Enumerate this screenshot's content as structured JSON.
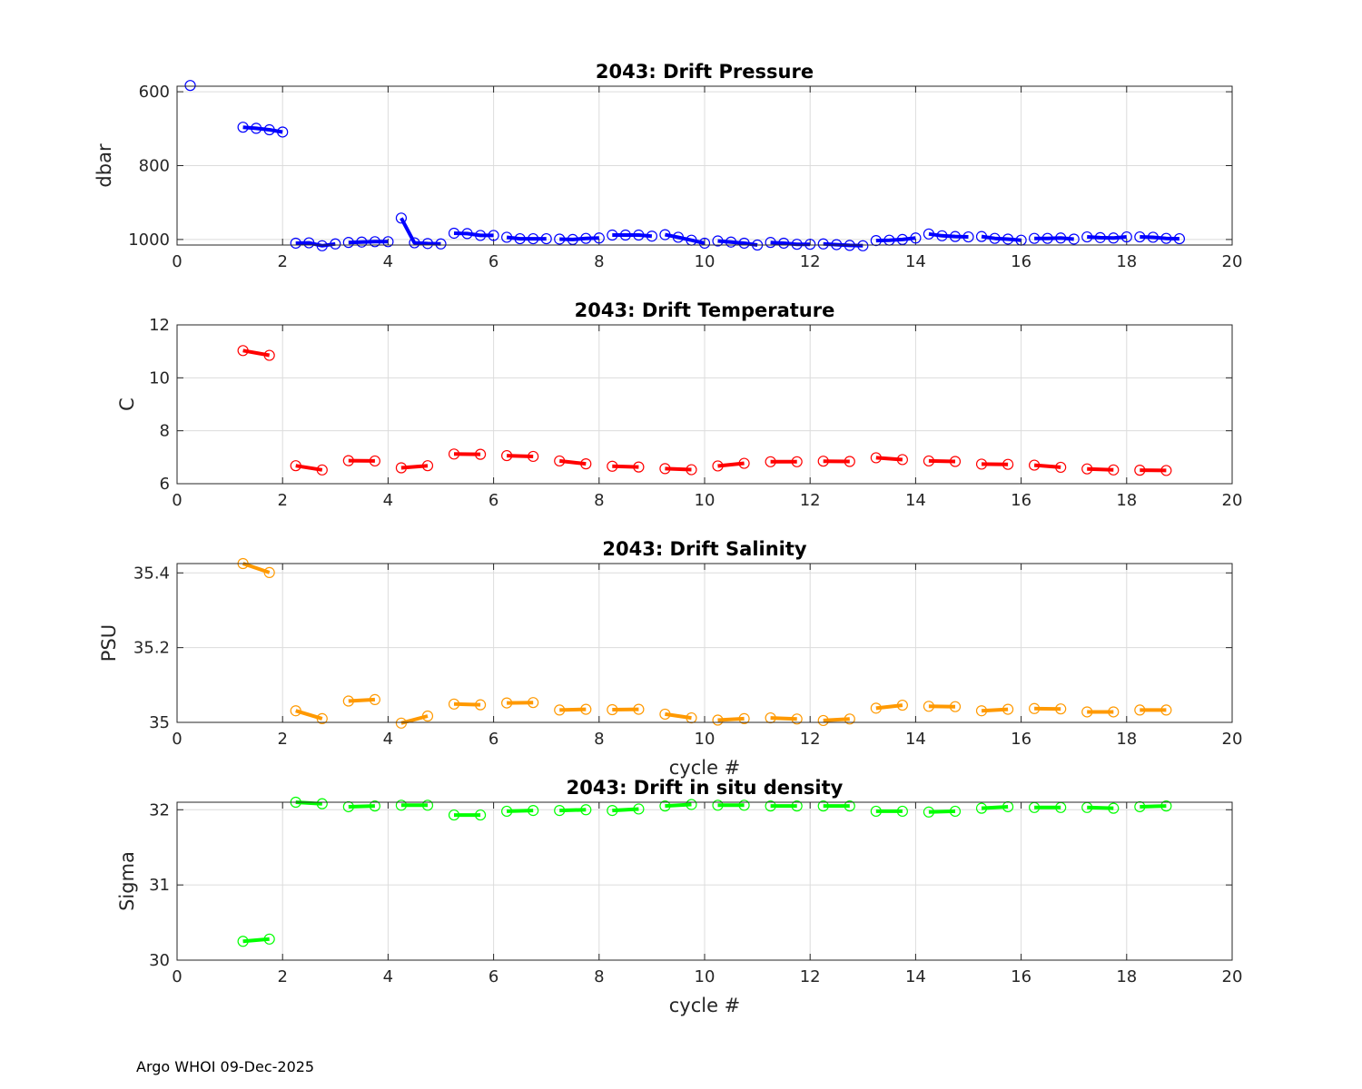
{
  "footer": "Argo WHOI 09-Dec-2025",
  "chart_data": [
    {
      "type": "line",
      "title": "2043: Drift Pressure",
      "xlabel": "",
      "ylabel": "dbar",
      "xlim": [
        0,
        20
      ],
      "ylim": [
        1015,
        585
      ],
      "y_reversed": true,
      "xticks": [
        0,
        2,
        4,
        6,
        8,
        10,
        12,
        14,
        16,
        18,
        20
      ],
      "yticks": [
        600,
        800,
        1000
      ],
      "grid": true,
      "color": "#0000ff",
      "marker": "circle",
      "segments": [
        {
          "x": [
            0.25
          ],
          "y": [
            583
          ]
        },
        {
          "x": [
            1.25,
            1.5,
            1.75,
            2.0
          ],
          "y": [
            696,
            699,
            703,
            709
          ]
        },
        {
          "x": [
            2.25,
            2.5,
            2.75,
            3.0
          ],
          "y": [
            1010,
            1009,
            1017,
            1012
          ]
        },
        {
          "x": [
            3.25,
            3.5,
            3.75,
            4.0
          ],
          "y": [
            1008,
            1007,
            1006,
            1006
          ]
        },
        {
          "x": [
            4.25,
            4.5,
            4.75,
            5.0
          ],
          "y": [
            942,
            1009,
            1011,
            1012
          ]
        },
        {
          "x": [
            5.25,
            5.5,
            5.75,
            6.0
          ],
          "y": [
            983,
            984,
            989,
            989
          ]
        },
        {
          "x": [
            6.25,
            6.5,
            6.75,
            7.0
          ],
          "y": [
            994,
            998,
            998,
            998
          ]
        },
        {
          "x": [
            7.25,
            7.5,
            7.75,
            8.0
          ],
          "y": [
            999,
            1000,
            997,
            996
          ]
        },
        {
          "x": [
            8.25,
            8.5,
            8.75,
            9.0
          ],
          "y": [
            988,
            988,
            988,
            991
          ]
        },
        {
          "x": [
            9.25,
            9.5,
            9.75,
            10.0
          ],
          "y": [
            987,
            994,
            1002,
            1010
          ]
        },
        {
          "x": [
            10.25,
            10.5,
            10.75,
            11.0
          ],
          "y": [
            1004,
            1007,
            1010,
            1015
          ]
        },
        {
          "x": [
            11.25,
            11.5,
            11.75,
            12.0
          ],
          "y": [
            1008,
            1010,
            1013,
            1013
          ]
        },
        {
          "x": [
            12.25,
            12.5,
            12.75,
            13.0
          ],
          "y": [
            1012,
            1014,
            1016,
            1017
          ]
        },
        {
          "x": [
            13.25,
            13.5,
            13.75,
            14.0
          ],
          "y": [
            1003,
            1002,
            1000,
            996
          ]
        },
        {
          "x": [
            14.25,
            14.5,
            14.75,
            15.0
          ],
          "y": [
            985,
            990,
            992,
            993
          ]
        },
        {
          "x": [
            15.25,
            15.5,
            15.75,
            16.0
          ],
          "y": [
            992,
            997,
            999,
            1002
          ]
        },
        {
          "x": [
            16.25,
            16.5,
            16.75,
            17.0
          ],
          "y": [
            997,
            997,
            996,
            999
          ]
        },
        {
          "x": [
            17.25,
            17.5,
            17.75,
            18.0
          ],
          "y": [
            993,
            995,
            996,
            993
          ]
        },
        {
          "x": [
            18.25,
            18.5,
            18.75,
            19.0
          ],
          "y": [
            993,
            994,
            997,
            998
          ]
        }
      ]
    },
    {
      "type": "line",
      "title": "2043: Drift Temperature",
      "xlabel": "",
      "ylabel": "C",
      "xlim": [
        0,
        20
      ],
      "ylim": [
        6,
        12
      ],
      "y_reversed": false,
      "xticks": [
        0,
        2,
        4,
        6,
        8,
        10,
        12,
        14,
        16,
        18,
        20
      ],
      "yticks": [
        6,
        8,
        10,
        12
      ],
      "grid": true,
      "color": "#ff0000",
      "marker": "circle",
      "segments": [
        {
          "x": [
            1.25,
            1.75
          ],
          "y": [
            11.03,
            10.85
          ]
        },
        {
          "x": [
            2.25,
            2.75
          ],
          "y": [
            6.68,
            6.52
          ]
        },
        {
          "x": [
            3.25,
            3.75
          ],
          "y": [
            6.87,
            6.86
          ]
        },
        {
          "x": [
            4.25,
            4.75
          ],
          "y": [
            6.6,
            6.68
          ]
        },
        {
          "x": [
            5.25,
            5.75
          ],
          "y": [
            7.12,
            7.11
          ]
        },
        {
          "x": [
            6.25,
            6.75
          ],
          "y": [
            7.06,
            7.03
          ]
        },
        {
          "x": [
            7.25,
            7.75
          ],
          "y": [
            6.86,
            6.75
          ]
        },
        {
          "x": [
            8.25,
            8.75
          ],
          "y": [
            6.66,
            6.63
          ]
        },
        {
          "x": [
            9.25,
            9.75
          ],
          "y": [
            6.57,
            6.53
          ]
        },
        {
          "x": [
            10.25,
            10.75
          ],
          "y": [
            6.67,
            6.77
          ]
        },
        {
          "x": [
            11.25,
            11.75
          ],
          "y": [
            6.83,
            6.83
          ]
        },
        {
          "x": [
            12.25,
            12.75
          ],
          "y": [
            6.85,
            6.84
          ]
        },
        {
          "x": [
            13.25,
            13.75
          ],
          "y": [
            6.98,
            6.91
          ]
        },
        {
          "x": [
            14.25,
            14.75
          ],
          "y": [
            6.86,
            6.84
          ]
        },
        {
          "x": [
            15.25,
            15.75
          ],
          "y": [
            6.74,
            6.73
          ]
        },
        {
          "x": [
            16.25,
            16.75
          ],
          "y": [
            6.7,
            6.62
          ]
        },
        {
          "x": [
            17.25,
            17.75
          ],
          "y": [
            6.56,
            6.52
          ]
        },
        {
          "x": [
            18.25,
            18.75
          ],
          "y": [
            6.51,
            6.5
          ]
        }
      ]
    },
    {
      "type": "line",
      "title": "2043: Drift Salinity",
      "xlabel": "cycle #",
      "ylabel": "PSU",
      "xlim": [
        0,
        20
      ],
      "ylim": [
        35,
        35.425
      ],
      "y_reversed": false,
      "xticks": [
        0,
        2,
        4,
        6,
        8,
        10,
        12,
        14,
        16,
        18,
        20
      ],
      "yticks": [
        35,
        35.2,
        35.4
      ],
      "grid": true,
      "color": "#ff9900",
      "marker": "circle",
      "segments": [
        {
          "x": [
            1.25,
            1.75
          ],
          "y": [
            35.425,
            35.401
          ]
        },
        {
          "x": [
            2.25,
            2.75
          ],
          "y": [
            35.031,
            35.01
          ]
        },
        {
          "x": [
            3.25,
            3.75
          ],
          "y": [
            35.057,
            35.061
          ]
        },
        {
          "x": [
            4.25,
            4.75
          ],
          "y": [
            34.998,
            35.017
          ]
        },
        {
          "x": [
            5.25,
            5.75
          ],
          "y": [
            35.049,
            35.047
          ]
        },
        {
          "x": [
            6.25,
            6.75
          ],
          "y": [
            35.052,
            35.053
          ]
        },
        {
          "x": [
            7.25,
            7.75
          ],
          "y": [
            35.033,
            35.035
          ]
        },
        {
          "x": [
            8.25,
            8.75
          ],
          "y": [
            35.034,
            35.035
          ]
        },
        {
          "x": [
            9.25,
            9.75
          ],
          "y": [
            35.022,
            35.012
          ]
        },
        {
          "x": [
            10.25,
            10.75
          ],
          "y": [
            35.006,
            35.01
          ]
        },
        {
          "x": [
            11.25,
            11.75
          ],
          "y": [
            35.012,
            35.009
          ]
        },
        {
          "x": [
            12.25,
            12.75
          ],
          "y": [
            35.005,
            35.009
          ]
        },
        {
          "x": [
            13.25,
            13.75
          ],
          "y": [
            35.038,
            35.046
          ]
        },
        {
          "x": [
            14.25,
            14.75
          ],
          "y": [
            35.043,
            35.042
          ]
        },
        {
          "x": [
            15.25,
            15.75
          ],
          "y": [
            35.031,
            35.035
          ]
        },
        {
          "x": [
            16.25,
            16.75
          ],
          "y": [
            35.037,
            35.036
          ]
        },
        {
          "x": [
            17.25,
            17.75
          ],
          "y": [
            35.028,
            35.028
          ]
        },
        {
          "x": [
            18.25,
            18.75
          ],
          "y": [
            35.033,
            35.033
          ]
        }
      ]
    },
    {
      "type": "line",
      "title": "2043: Drift in situ density",
      "xlabel": "cycle #",
      "ylabel": "Sigma",
      "xlim": [
        0,
        20
      ],
      "ylim": [
        30,
        32.1
      ],
      "y_reversed": false,
      "xticks": [
        0,
        2,
        4,
        6,
        8,
        10,
        12,
        14,
        16,
        18,
        20
      ],
      "yticks": [
        30,
        31,
        32
      ],
      "grid": true,
      "color": "#00ff00",
      "marker": "circle",
      "segments": [
        {
          "x": [
            1.25,
            1.75
          ],
          "y": [
            30.25,
            30.28
          ]
        },
        {
          "x": [
            2.25,
            2.75
          ],
          "y": [
            32.1,
            32.08
          ]
        },
        {
          "x": [
            3.25,
            3.75
          ],
          "y": [
            32.04,
            32.05
          ]
        },
        {
          "x": [
            4.25,
            4.75
          ],
          "y": [
            32.06,
            32.06
          ]
        },
        {
          "x": [
            5.25,
            5.75
          ],
          "y": [
            31.93,
            31.93
          ]
        },
        {
          "x": [
            6.25,
            6.75
          ],
          "y": [
            31.98,
            31.99
          ]
        },
        {
          "x": [
            7.25,
            7.75
          ],
          "y": [
            31.99,
            32.0
          ]
        },
        {
          "x": [
            8.25,
            8.75
          ],
          "y": [
            31.99,
            32.01
          ]
        },
        {
          "x": [
            9.25,
            9.75
          ],
          "y": [
            32.05,
            32.07
          ]
        },
        {
          "x": [
            10.25,
            10.75
          ],
          "y": [
            32.06,
            32.06
          ]
        },
        {
          "x": [
            11.25,
            11.75
          ],
          "y": [
            32.05,
            32.05
          ]
        },
        {
          "x": [
            12.25,
            12.75
          ],
          "y": [
            32.05,
            32.05
          ]
        },
        {
          "x": [
            13.25,
            13.75
          ],
          "y": [
            31.98,
            31.98
          ]
        },
        {
          "x": [
            14.25,
            14.75
          ],
          "y": [
            31.97,
            31.98
          ]
        },
        {
          "x": [
            15.25,
            15.75
          ],
          "y": [
            32.02,
            32.04
          ]
        },
        {
          "x": [
            16.25,
            16.75
          ],
          "y": [
            32.03,
            32.03
          ]
        },
        {
          "x": [
            17.25,
            17.75
          ],
          "y": [
            32.03,
            32.02
          ]
        },
        {
          "x": [
            18.25,
            18.75
          ],
          "y": [
            32.04,
            32.05
          ]
        }
      ]
    }
  ]
}
